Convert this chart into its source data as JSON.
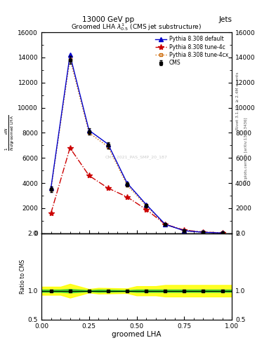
{
  "title_top": "13000 GeV pp",
  "title_right": "Jets",
  "plot_title": "Groomed LHA $\\lambda^{1}_{0.5}$ (CMS jet substructure)",
  "xlabel": "groomed LHA",
  "right_label_top": "Rivet 3.1.10, ≥ 2.4M events",
  "right_label_bottom": "mcplots.cern.ch [arXiv:1306.3436]",
  "watermark": "CMS_2021_PAS_SMP_20_187",
  "x_data": [
    0.05,
    0.15,
    0.25,
    0.35,
    0.45,
    0.55,
    0.65,
    0.75,
    0.85,
    0.95
  ],
  "cms_y": [
    3500,
    13800,
    8100,
    7000,
    3900,
    2200,
    700,
    200,
    80,
    25
  ],
  "cms_yerr": [
    200,
    300,
    250,
    250,
    180,
    130,
    60,
    30,
    15,
    8
  ],
  "default_y": [
    3600,
    14200,
    8200,
    7100,
    4000,
    2300,
    720,
    210,
    85,
    30
  ],
  "tune4c_y": [
    1600,
    6800,
    4600,
    3600,
    2900,
    1900,
    720,
    260,
    105,
    42
  ],
  "tune4cx_y": [
    3500,
    13900,
    8000,
    6900,
    3850,
    2200,
    710,
    205,
    82,
    28
  ],
  "cms_color": "#000000",
  "default_color": "#0000cc",
  "tune4c_color": "#cc0000",
  "tune4cx_color": "#cc6600",
  "ylim_main": [
    0,
    16000
  ],
  "yticks_main": [
    0,
    2000,
    4000,
    6000,
    8000,
    10000,
    12000,
    14000,
    16000
  ],
  "ylim_ratio": [
    0.5,
    2.0
  ],
  "yticks_ratio": [
    0.5,
    1.0,
    2.0
  ],
  "xlim": [
    0,
    1.0
  ],
  "xticks": [
    0,
    0.25,
    0.5,
    0.75,
    1.0
  ]
}
